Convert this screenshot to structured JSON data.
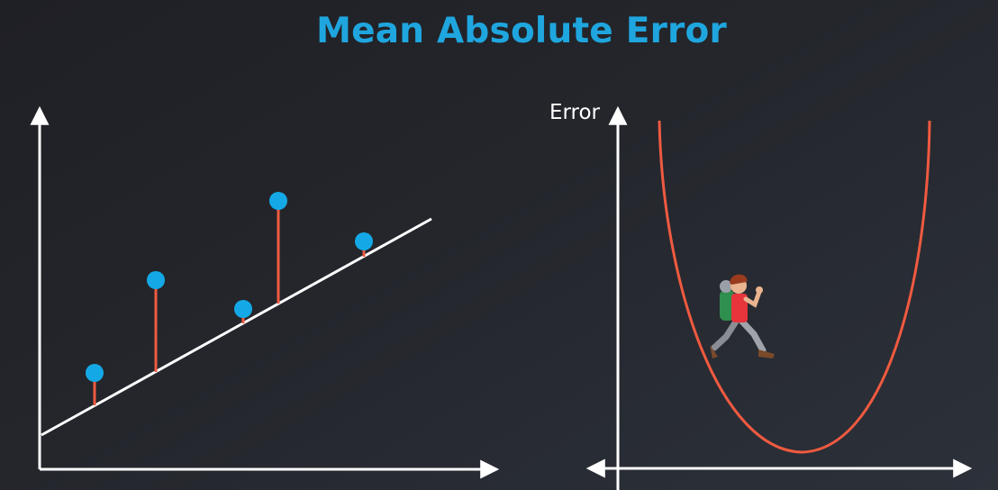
{
  "title": "Mean Absolute Error",
  "right_plot": {
    "y_axis_label": "Error"
  },
  "colors": {
    "title": "#1fa6df",
    "point": "#14a9e6",
    "residual": "#f05a40",
    "regression_line": "#ffffff",
    "error_curve": "#f05a40",
    "axes": "#ffffff"
  },
  "icons": {
    "hiker": "hiker-with-backpack-icon"
  }
}
